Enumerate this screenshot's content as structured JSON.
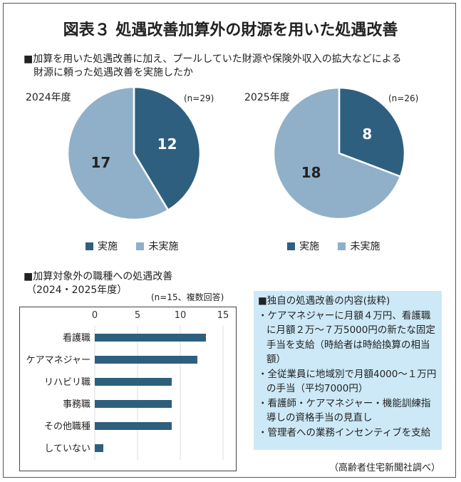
{
  "title": "図表３ 処遇改善加算外の財源を用いた処遇改善",
  "colors": {
    "implemented": "#2e5f7e",
    "not_implemented": "#8fb0c8",
    "box_bg": "#cde9f7"
  },
  "question": {
    "line1": "■加算を用いた処遇改善に加え、プールしていた財源や保険外収入の拡大などによる",
    "line2": "財源に頼った処遇改善を実施したか"
  },
  "legend": {
    "implemented": "実施",
    "not_implemented": "未実施"
  },
  "chart_data": [
    {
      "type": "pie",
      "title": "2024年度",
      "note": "(n=29)",
      "categories": [
        "実施",
        "未実施"
      ],
      "values": [
        12,
        17
      ]
    },
    {
      "type": "pie",
      "title": "2025年度",
      "note": "(n=26)",
      "categories": [
        "実施",
        "未実施"
      ],
      "values": [
        8,
        18
      ]
    },
    {
      "type": "bar",
      "orientation": "horizontal",
      "title": "■加算対象外の職種への処遇改善",
      "subtitle": "（2024・2025年度）",
      "note": "(n=15、複数回答)",
      "categories": [
        "看護職",
        "ケアマネジャー",
        "リハビリ職",
        "事務職",
        "その他職種",
        "していない"
      ],
      "values": [
        13,
        12,
        9,
        9,
        9,
        1
      ],
      "xlim": [
        0,
        15
      ],
      "ticks": [
        "0",
        "5",
        "10",
        "15"
      ],
      "grid": true
    }
  ],
  "box": {
    "title": "■独自の処遇改善の内容(抜粋)",
    "items": [
      "・ケアマネジャーに月額４万円、看護職に月額２万～７万5000円の新たな固定手当を支給（時給者は時給換算の相当額）",
      "・全従業員に地域別で月額4000～１万円の手当（平均7000円）",
      "・看護師・ケアマネジャー・機能訓練指導しの資格手当の見直し",
      "・管理者への業務インセンティブを支給"
    ]
  },
  "source": "（高齢者住宅新聞社調べ）"
}
